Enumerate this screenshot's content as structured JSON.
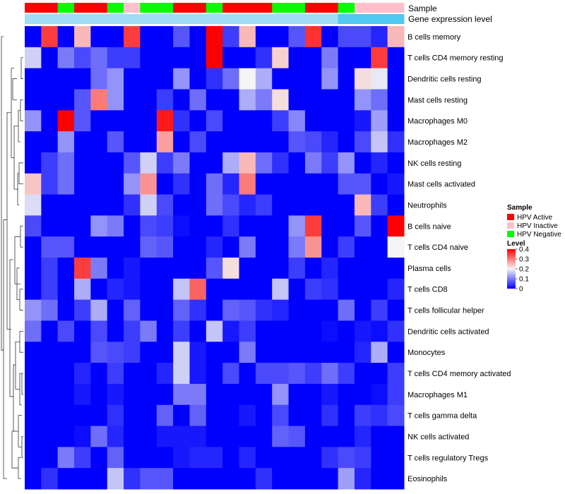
{
  "chart_data": {
    "type": "heatmap",
    "title": "",
    "annotation_tracks": [
      "Sample",
      "Gene expression level"
    ],
    "sample_groups": [
      "HPV Active",
      "HPV Active",
      "HPV Negative",
      "HPV Active",
      "HPV Active",
      "HPV Negative",
      "HPV Inactive",
      "HPV Negative",
      "HPV Negative",
      "HPV Active",
      "HPV Active",
      "HPV Negative",
      "HPV Active",
      "HPV Active",
      "HPV Active",
      "HPV Negative",
      "HPV Negative",
      "HPV Active",
      "HPV Active",
      "HPV Negative",
      "HPV Inactive",
      "HPV Inactive",
      "HPV Inactive"
    ],
    "expression_track_colors": [
      "#9fdcf5",
      "#9fdcf5",
      "#9fdcf5",
      "#9fdcf5",
      "#9fdcf5",
      "#9fdcf5",
      "#9fdcf5",
      "#9fdcf5",
      "#9fdcf5",
      "#9fdcf5",
      "#9fdcf5",
      "#9fdcf5",
      "#9fdcf5",
      "#9fdcf5",
      "#9fdcf5",
      "#9fdcf5",
      "#9fdcf5",
      "#9fdcf5",
      "#9fdcf5",
      "#4fc8f2",
      "#4fc8f2",
      "#4fc8f2",
      "#4fc8f2"
    ],
    "rows": [
      "B cells memory",
      "T cells CD4 memory resting",
      "Dendritic cells resting",
      "Mast cells resting",
      "Macrophages M0",
      "Macrophages M2",
      "NK cells resting",
      "Mast cells activated",
      "Neutrophils",
      "B cells naive",
      "T cells CD4 naive",
      "Plasma cells",
      "T cells CD8",
      "T cells follicular helper",
      "Dendritic cells activated",
      "Monocytes",
      "T cells CD4 memory activated",
      "Macrophages M1",
      "T cells gamma delta",
      "NK cells activated",
      "T cells regulatory  Tregs",
      "Eosinophils"
    ],
    "values": [
      [
        0,
        0.35,
        0,
        0.25,
        0,
        0,
        0.35,
        0,
        0,
        0.07,
        0,
        0.4,
        0.05,
        0.25,
        0,
        0,
        0.07,
        0.36,
        0,
        0.06,
        0.06,
        0.03,
        0.25
      ],
      [
        0.17,
        0,
        0.1,
        0.06,
        0.09,
        0.05,
        0.05,
        0,
        0,
        0,
        0,
        0.4,
        0,
        0,
        0.04,
        0.23,
        0,
        0,
        0.1,
        0,
        0,
        0.35,
        0
      ],
      [
        0,
        0,
        0,
        0,
        0.09,
        0.12,
        0,
        0,
        0,
        0.12,
        0,
        0.04,
        0.09,
        0.2,
        0.14,
        0,
        0,
        0,
        0.12,
        0,
        0.22,
        0.19,
        0
      ],
      [
        0,
        0,
        0,
        0.07,
        0.3,
        0.12,
        0,
        0,
        0.05,
        0,
        0.09,
        0,
        0,
        0.14,
        0.1,
        0.22,
        0,
        0,
        0,
        0,
        0.12,
        0.09,
        0
      ],
      [
        0.12,
        0,
        0.4,
        0.07,
        0,
        0,
        0,
        0,
        0.38,
        0.04,
        0,
        0.06,
        0,
        0,
        0,
        0.05,
        0.11,
        0,
        0,
        0,
        0.02,
        0.13,
        0
      ],
      [
        0,
        0,
        0.12,
        0,
        0,
        0.07,
        0,
        0,
        0.27,
        0,
        0.06,
        0,
        0,
        0,
        0,
        0,
        0.07,
        0.06,
        0.03,
        0,
        0.06,
        0.16,
        0.04
      ],
      [
        0,
        0.05,
        0.09,
        0,
        0,
        0,
        0.07,
        0.17,
        0.05,
        0.1,
        0,
        0,
        0.14,
        0.25,
        0.09,
        0.04,
        0,
        0.1,
        0.05,
        0.12,
        0,
        0.03,
        0
      ],
      [
        0.24,
        0.05,
        0.09,
        0,
        0,
        0,
        0.12,
        0.28,
        0,
        0.04,
        0,
        0.09,
        0.03,
        0.3,
        0,
        0,
        0,
        0,
        0,
        0.07,
        0.07,
        0,
        0.02
      ],
      [
        0.18,
        0,
        0,
        0,
        0,
        0,
        0.04,
        0.17,
        0.06,
        0,
        0,
        0.09,
        0.06,
        0.03,
        0.05,
        0,
        0,
        0,
        0,
        0,
        0.25,
        0.05,
        0
      ],
      [
        0.06,
        0,
        0,
        0,
        0.12,
        0.1,
        0,
        0.06,
        0.05,
        0.01,
        0,
        0,
        0.04,
        0,
        0,
        0,
        0.12,
        0.35,
        0,
        0,
        0.07,
        0,
        0.4
      ],
      [
        0,
        0.07,
        0.07,
        0,
        0,
        0,
        0,
        0.08,
        0.07,
        0,
        0,
        0.03,
        0,
        0.1,
        0,
        0,
        0.1,
        0.28,
        0,
        0.05,
        0,
        0,
        0.2
      ],
      [
        0,
        0.05,
        0,
        0.35,
        0.1,
        0,
        0.02,
        0,
        0,
        0,
        0,
        0.07,
        0.22,
        0,
        0,
        0,
        0.05,
        0,
        0.03,
        0,
        0,
        0,
        0
      ],
      [
        0,
        0.05,
        0,
        0.14,
        0,
        0.03,
        0.02,
        0,
        0,
        0.16,
        0.32,
        0,
        0,
        0,
        0,
        0.16,
        0,
        0.05,
        0.04,
        0,
        0,
        0,
        0.03
      ],
      [
        0.12,
        0.09,
        0,
        0.05,
        0.14,
        0,
        0.08,
        0,
        0,
        0.08,
        0.04,
        0,
        0.08,
        0.07,
        0.04,
        0.03,
        0,
        0,
        0,
        0.09,
        0,
        0.05,
        0
      ],
      [
        0.09,
        0,
        0.06,
        0,
        0.06,
        0,
        0.05,
        0.1,
        0,
        0.05,
        0,
        0.16,
        0.02,
        0.05,
        0,
        0,
        0,
        0,
        0.01,
        0,
        0.02,
        0.01,
        0.04
      ],
      [
        0,
        0,
        0,
        0,
        0.07,
        0.06,
        0.05,
        0,
        0,
        0.17,
        0.02,
        0,
        0,
        0.1,
        0,
        0,
        0,
        0,
        0,
        0,
        0.03,
        0.14,
        0
      ],
      [
        0,
        0,
        0,
        0.03,
        0,
        0.05,
        0,
        0,
        0.03,
        0.17,
        0.02,
        0,
        0.06,
        0,
        0.06,
        0.06,
        0.07,
        0.05,
        0.09,
        0.05,
        0,
        0,
        0.05
      ],
      [
        0,
        0,
        0,
        0.02,
        0,
        0.02,
        0,
        0,
        0,
        0.1,
        0.1,
        0,
        0,
        0,
        0,
        0.12,
        0,
        0,
        0.02,
        0,
        0,
        0.01,
        0.05
      ],
      [
        0,
        0,
        0,
        0,
        0,
        0.04,
        0,
        0,
        0.08,
        0,
        0.08,
        0,
        0,
        0.02,
        0,
        0.06,
        0,
        0,
        0.04,
        0,
        0.05,
        0.04,
        0.06
      ],
      [
        0,
        0,
        0,
        0.01,
        0.09,
        0.03,
        0,
        0,
        0.02,
        0.02,
        0.02,
        0,
        0,
        0,
        0,
        0.08,
        0.07,
        0,
        0,
        0,
        0.03,
        0,
        0
      ],
      [
        0,
        0,
        0.1,
        0.05,
        0,
        0.08,
        0,
        0,
        0,
        0.02,
        0.03,
        0.03,
        0,
        0.03,
        0,
        0,
        0,
        0,
        0.04,
        0.06,
        0.05,
        0,
        0
      ],
      [
        0,
        0.04,
        0,
        0,
        0,
        0.16,
        0.04,
        0.07,
        0.07,
        0,
        0,
        0,
        0,
        0,
        0.04,
        0,
        0,
        0,
        0,
        0.13,
        0.03,
        0,
        0
      ]
    ],
    "color_scale": {
      "min": 0,
      "max": 0.4,
      "low_color": "#0000ff",
      "mid_color": "#f5f5f5",
      "high_color": "#ff0000"
    },
    "sample_colors": {
      "HPV Active": "#ff0000",
      "HPV Inactive": "#ffc0cb",
      "HPV Negative": "#00ff00"
    },
    "legend": {
      "sample_title": "Sample",
      "sample_entries": [
        "HPV Active",
        "HPV Inactive",
        "HPV Negative"
      ],
      "level_title": "Level",
      "level_ticks": [
        "0.4",
        "0.3",
        "0.2",
        "0.1",
        "0"
      ],
      "level_tick_values": [
        0.4,
        0.3,
        0.2,
        0.1,
        0
      ]
    },
    "row_dendrogram": true,
    "column_dendrogram": false
  }
}
